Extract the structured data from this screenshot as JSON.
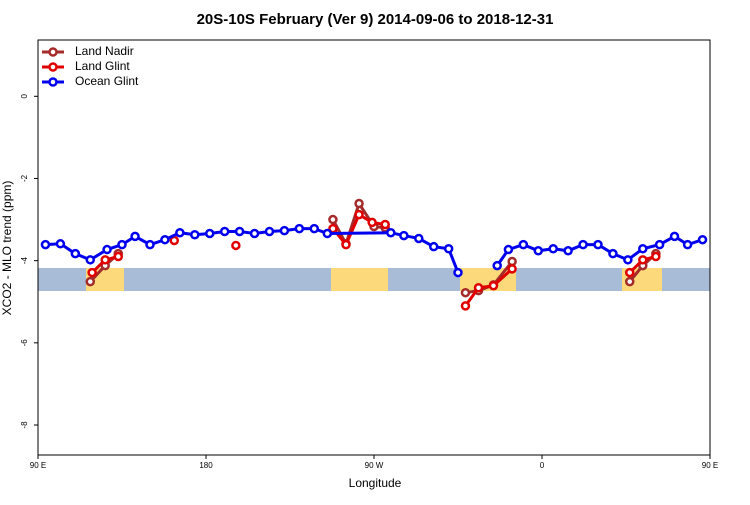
{
  "chart_data": {
    "type": "line",
    "title": "20S-10S February (Ver 9)   2014-09-06 to 2018-12-31",
    "x_label": "Longitude",
    "y_label": "XCO2 - MLO trend (ppm)",
    "xlim": [
      90,
      450
    ],
    "ylim": [
      -8.73,
      1.37
    ],
    "xticks": [
      {
        "value": 90,
        "label": "90 E"
      },
      {
        "value": 180,
        "label": "180"
      },
      {
        "value": 270,
        "label": "90 W"
      },
      {
        "value": 360,
        "label": "0"
      },
      {
        "value": 450,
        "label": "90 E"
      }
    ],
    "yticks": [
      0,
      -2,
      -4,
      -6,
      -8
    ],
    "legend": "top-left",
    "series": [
      {
        "name": "Land Nadir",
        "color": "#a52a2a",
        "x": [
          118,
          126,
          133,
          null,
          248,
          255,
          262,
          270,
          276,
          null,
          319,
          326,
          334,
          344,
          null,
          407,
          414,
          421
        ],
        "values": [
          -4.51,
          -4.12,
          -3.83,
          null,
          -3.0,
          -3.59,
          -2.61,
          -3.17,
          -3.2,
          null,
          -4.78,
          -4.73,
          -4.59,
          -4.02,
          null,
          -4.51,
          -4.12,
          -3.83
        ]
      },
      {
        "name": "Land Glint",
        "color": "#e00000",
        "x": [
          119,
          126,
          133,
          null,
          163,
          null,
          196,
          null,
          248,
          255,
          262,
          269,
          276,
          null,
          319,
          326,
          334,
          344,
          null,
          407,
          414,
          421
        ],
        "values": [
          -4.29,
          -3.98,
          -3.9,
          null,
          -3.51,
          null,
          -3.63,
          null,
          -3.22,
          -3.61,
          -2.88,
          -3.07,
          -3.12,
          null,
          -5.1,
          -4.66,
          -4.61,
          -4.2,
          null,
          -4.29,
          -3.98,
          -3.9
        ]
      },
      {
        "name": "Ocean Glint",
        "color": "#0000ee",
        "x": [
          94,
          102,
          110,
          118,
          127,
          135,
          142,
          150,
          158,
          166,
          174,
          182,
          190,
          198,
          206,
          214,
          222,
          230,
          238,
          245,
          279,
          286,
          294,
          302,
          310,
          315,
          null,
          336,
          342,
          350,
          358,
          366,
          374,
          382,
          390,
          398,
          406,
          414,
          423,
          431,
          438,
          446
        ],
        "values": [
          -3.61,
          -3.59,
          -3.83,
          -3.98,
          -3.73,
          -3.61,
          -3.41,
          -3.61,
          -3.49,
          -3.32,
          -3.37,
          -3.34,
          -3.29,
          -3.29,
          -3.34,
          -3.29,
          -3.27,
          -3.22,
          -3.22,
          -3.34,
          -3.32,
          -3.39,
          -3.46,
          -3.66,
          -3.71,
          -4.29,
          null,
          -4.12,
          -3.73,
          -3.61,
          -3.76,
          -3.71,
          -3.76,
          -3.61,
          -3.61,
          -3.83,
          -3.98,
          -3.71,
          -3.61,
          -3.41,
          -3.61,
          -3.49
        ]
      }
    ]
  }
}
